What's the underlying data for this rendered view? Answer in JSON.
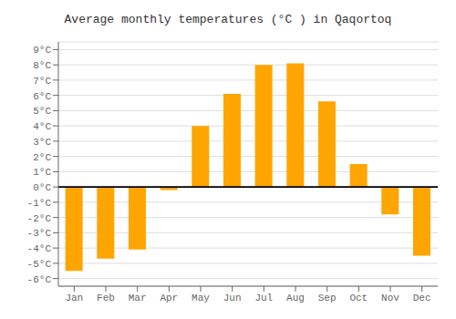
{
  "chart_data": {
    "type": "bar",
    "title": "Average monthly temperatures (°C ) in Qaqortoq",
    "categories": [
      "Jan",
      "Feb",
      "Mar",
      "Apr",
      "May",
      "Jun",
      "Jul",
      "Aug",
      "Sep",
      "Oct",
      "Nov",
      "Dec"
    ],
    "values": [
      -5.5,
      -4.7,
      -4.1,
      -0.2,
      4.0,
      6.1,
      8.0,
      8.1,
      5.6,
      1.5,
      -1.8,
      -4.5
    ],
    "color": "#FFA500",
    "ylim": [
      -6.5,
      9.5
    ],
    "yticks": [
      {
        "value": -6,
        "label": "-6°C"
      },
      {
        "value": -5,
        "label": "-5°C"
      },
      {
        "value": -4,
        "label": "-4°C"
      },
      {
        "value": -3,
        "label": "-3°C"
      },
      {
        "value": -2,
        "label": "-2°C"
      },
      {
        "value": -1,
        "label": "-1°C"
      },
      {
        "value": 0,
        "label": "0°C"
      },
      {
        "value": 1,
        "label": "1°C"
      },
      {
        "value": 2,
        "label": "2°C"
      },
      {
        "value": 3,
        "label": "3°C"
      },
      {
        "value": 4,
        "label": "4°C"
      },
      {
        "value": 5,
        "label": "5°C"
      },
      {
        "value": 6,
        "label": "6°C"
      },
      {
        "value": 7,
        "label": "7°C"
      },
      {
        "value": 8,
        "label": "8°C"
      },
      {
        "value": 9,
        "label": "9°C"
      }
    ],
    "grid": true
  }
}
